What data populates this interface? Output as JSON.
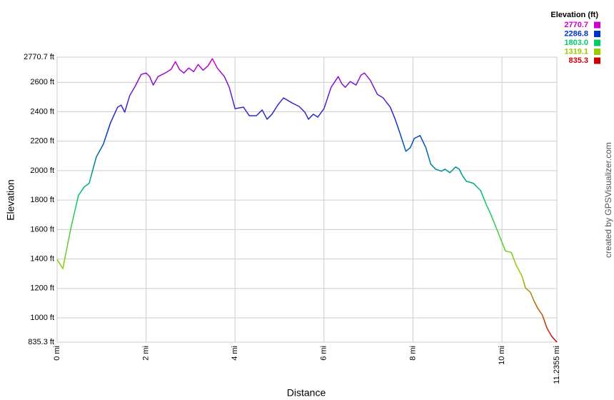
{
  "chart_data": {
    "type": "line",
    "y_label": "Elevation",
    "x_label": "Distance",
    "credit": "created by GPSVisualizer.com",
    "legend_title": "Elevation (ft)",
    "color_scale": [
      {
        "value": 2770.7,
        "color": "#cc00cc"
      },
      {
        "value": 2286.8,
        "color": "#0033cc"
      },
      {
        "value": 1803,
        "label": "1803.0",
        "color": "#00cc66"
      },
      {
        "value": 1319.1,
        "color": "#99cc00"
      },
      {
        "value": 835.3,
        "color": "#cc0000"
      }
    ],
    "grid": true,
    "xlim": [
      0,
      11.2355
    ],
    "ylim": [
      835.3,
      2770.7
    ],
    "xticks": [
      {
        "value": 0,
        "label": "0 mi"
      },
      {
        "value": 2,
        "label": "2 mi"
      },
      {
        "value": 4,
        "label": "4 mi"
      },
      {
        "value": 6,
        "label": "6 mi"
      },
      {
        "value": 8,
        "label": "8 mi"
      },
      {
        "value": 10,
        "label": "10 mi"
      },
      {
        "value": 11.2355,
        "label": "11.2355 mi"
      }
    ],
    "yticks": [
      {
        "value": 835.3,
        "label": "835.3 ft"
      },
      {
        "value": 1000,
        "label": "1000 ft"
      },
      {
        "value": 1200,
        "label": "1200 ft"
      },
      {
        "value": 1400,
        "label": "1400 ft"
      },
      {
        "value": 1600,
        "label": "1600 ft"
      },
      {
        "value": 1800,
        "label": "1800 ft"
      },
      {
        "value": 2000,
        "label": "2000 ft"
      },
      {
        "value": 2200,
        "label": "2200 ft"
      },
      {
        "value": 2400,
        "label": "2400 ft"
      },
      {
        "value": 2600,
        "label": "2600 ft"
      },
      {
        "value": 2770.7,
        "label": "2770.7 ft"
      }
    ],
    "x": [
      0,
      0.13,
      0.19,
      0.32,
      0.48,
      0.61,
      0.72,
      0.88,
      1.04,
      1.2,
      1.36,
      1.44,
      1.52,
      1.63,
      1.76,
      1.89,
      2.0,
      2.08,
      2.16,
      2.27,
      2.43,
      2.56,
      2.66,
      2.75,
      2.85,
      2.96,
      3.07,
      3.17,
      3.28,
      3.39,
      3.49,
      3.6,
      3.76,
      3.87,
      4.0,
      4.19,
      4.32,
      4.48,
      4.61,
      4.72,
      4.83,
      4.96,
      5.09,
      5.28,
      5.44,
      5.57,
      5.65,
      5.76,
      5.86,
      6.0,
      6.16,
      6.32,
      6.4,
      6.48,
      6.59,
      6.72,
      6.83,
      6.91,
      7.04,
      7.2,
      7.33,
      7.49,
      7.6,
      7.71,
      7.84,
      7.94,
      8.03,
      8.16,
      8.29,
      8.4,
      8.51,
      8.64,
      8.72,
      8.83,
      8.96,
      9.04,
      9.12,
      9.2,
      9.36,
      9.52,
      9.65,
      9.76,
      9.92,
      10.08,
      10.21,
      10.32,
      10.45,
      10.53,
      10.64,
      10.72,
      10.8,
      10.91,
      11.01,
      11.12,
      11.2355
    ],
    "series": [
      {
        "name": "Elevation",
        "values": [
          1397,
          1334,
          1430,
          1624,
          1832,
          1890,
          1914,
          2092,
          2180,
          2325,
          2431,
          2445,
          2397,
          2508,
          2576,
          2653,
          2663,
          2639,
          2581,
          2639,
          2663,
          2687,
          2740,
          2687,
          2663,
          2697,
          2672,
          2721,
          2682,
          2711,
          2760,
          2697,
          2639,
          2566,
          2421,
          2431,
          2373,
          2373,
          2412,
          2349,
          2383,
          2445,
          2494,
          2460,
          2436,
          2397,
          2349,
          2383,
          2363,
          2421,
          2566,
          2639,
          2590,
          2566,
          2605,
          2581,
          2648,
          2663,
          2614,
          2518,
          2494,
          2431,
          2349,
          2252,
          2131,
          2156,
          2219,
          2238,
          2156,
          2044,
          2010,
          1996,
          2010,
          1986,
          2025,
          2010,
          1962,
          1928,
          1914,
          1865,
          1769,
          1696,
          1575,
          1454,
          1445,
          1358,
          1285,
          1203,
          1174,
          1116,
          1068,
          1019,
          932,
          874,
          835.3
        ]
      }
    ]
  }
}
